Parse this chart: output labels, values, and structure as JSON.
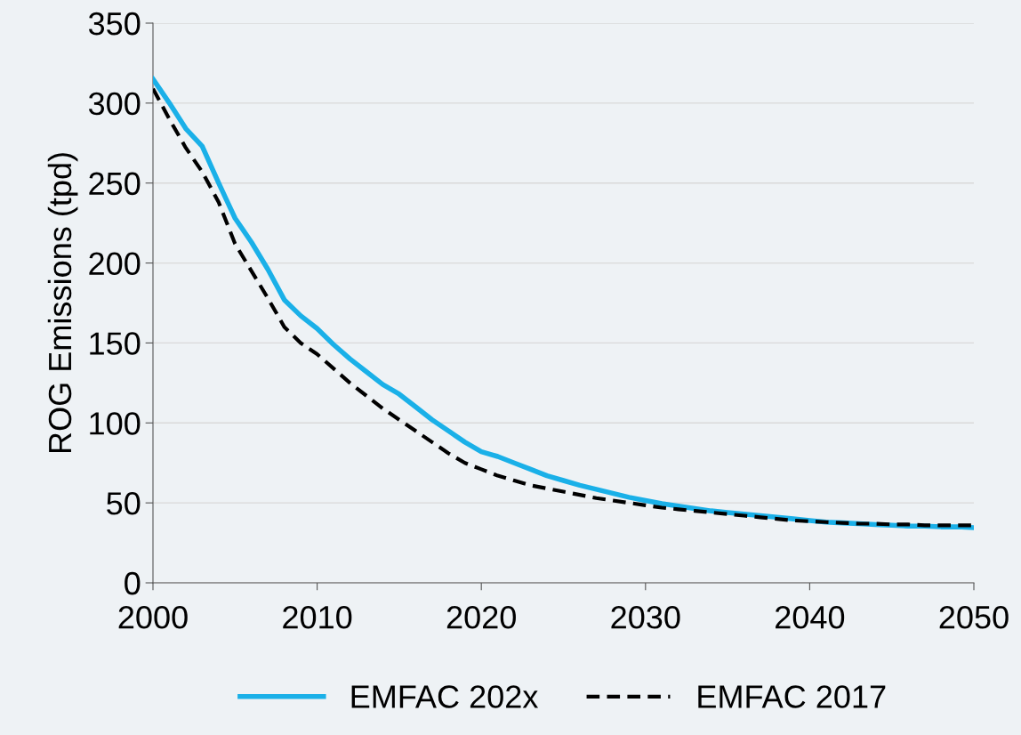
{
  "chart_data": {
    "type": "line",
    "ylabel": "ROG Emissions (tpd)",
    "x": [
      2000,
      2001,
      2002,
      2003,
      2004,
      2005,
      2006,
      2007,
      2008,
      2009,
      2010,
      2011,
      2012,
      2013,
      2014,
      2015,
      2016,
      2017,
      2018,
      2019,
      2020,
      2021,
      2022,
      2023,
      2024,
      2025,
      2026,
      2027,
      2028,
      2029,
      2030,
      2031,
      2032,
      2033,
      2034,
      2035,
      2036,
      2037,
      2038,
      2039,
      2040,
      2041,
      2042,
      2043,
      2044,
      2045,
      2046,
      2047,
      2048,
      2049,
      2050
    ],
    "series": [
      {
        "name": "EMFAC 202x",
        "color": "#1ab0e8",
        "line_style": "solid",
        "values": [
          315,
          300,
          284,
          273,
          250,
          228,
          213,
          196,
          177,
          167,
          159,
          149,
          140,
          132,
          124,
          118,
          110,
          102,
          95,
          88,
          82,
          79,
          75,
          71,
          67,
          64,
          61,
          58.5,
          56,
          53.5,
          51.5,
          49.5,
          48,
          46.5,
          45,
          44,
          43,
          42,
          41,
          40,
          39,
          38,
          37.5,
          37,
          36.5,
          36,
          35.5,
          35.5,
          35,
          35,
          34.5
        ]
      },
      {
        "name": "EMFAC 2017",
        "color": "#000000",
        "line_style": "dashed",
        "values": [
          309,
          290,
          272,
          257,
          238,
          212,
          195,
          178,
          160,
          150,
          143,
          134,
          125,
          117,
          109,
          102,
          95,
          88,
          81,
          75,
          71,
          67,
          64,
          61,
          59,
          57,
          55,
          53,
          51.5,
          50,
          48.5,
          47,
          46,
          45,
          44,
          43,
          42,
          41,
          40,
          39,
          38.5,
          38,
          37.5,
          37,
          37,
          36.5,
          36.5,
          36,
          36,
          36,
          36
        ]
      }
    ],
    "xlim": [
      2000,
      2050
    ],
    "xticks": [
      2000,
      2010,
      2020,
      2030,
      2040,
      2050
    ],
    "ylim": [
      0,
      350
    ],
    "yticks": [
      0,
      50,
      100,
      150,
      200,
      250,
      300,
      350
    ],
    "grid": "y",
    "legend": "bottom",
    "marker": "none"
  }
}
